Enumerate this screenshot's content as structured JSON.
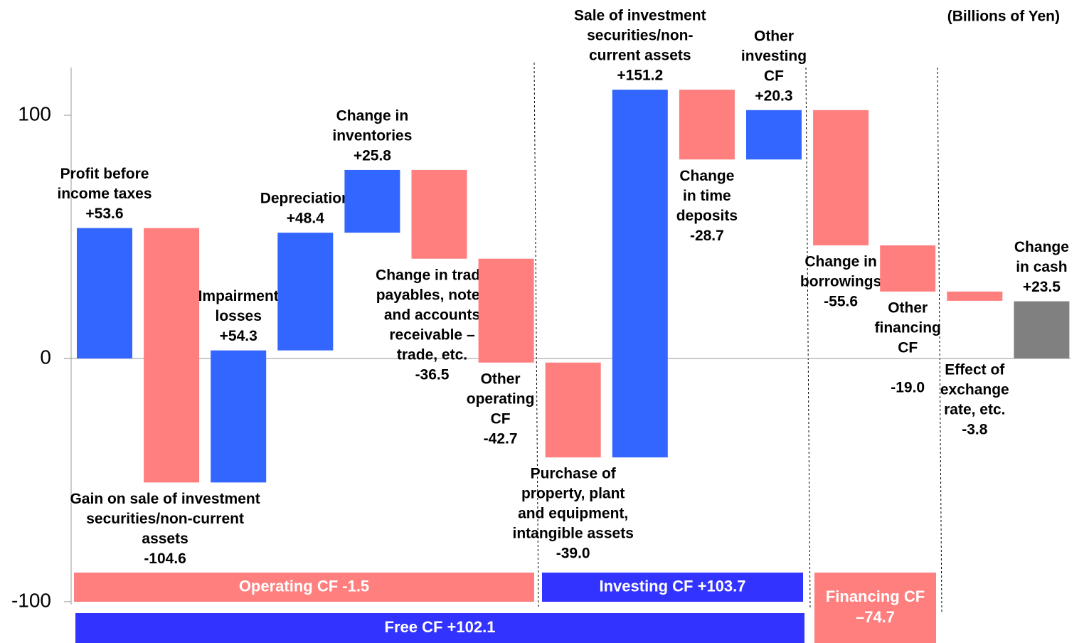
{
  "chart_data": {
    "type": "waterfall",
    "unit_label": "(Billions of Yen)",
    "categories": [
      [
        "Profit before",
        "income taxes"
      ],
      [
        "Gain on sale of investment",
        "securities/non-current",
        "assets"
      ],
      [
        "Impairment",
        "losses"
      ],
      [
        "Depreciation"
      ],
      [
        "Change in",
        "inventories"
      ],
      [
        "Change in trade",
        "payables, notes",
        "and accounts",
        "receivable –",
        "trade, etc."
      ],
      [
        "Other",
        "operating",
        "CF"
      ],
      [
        "Purchase of",
        "property, plant",
        "and equipment,",
        "intangible assets"
      ],
      [
        "Sale of investment",
        "securities/non-",
        "current assets"
      ],
      [
        "Change",
        "in time",
        "deposits"
      ],
      [
        "Other",
        "investing",
        "CF"
      ],
      [
        "Change in",
        "borrowings"
      ],
      [
        "Other",
        "financing",
        "CF"
      ],
      [
        "Effect of",
        "exchange",
        "rate, etc."
      ],
      [
        "Change",
        "in cash"
      ]
    ],
    "values": [
      53.6,
      -104.6,
      54.3,
      48.4,
      25.8,
      -36.5,
      -42.7,
      -39.0,
      151.2,
      -28.7,
      20.3,
      -55.6,
      -19.0,
      -3.8,
      23.5
    ],
    "value_labels": [
      "+53.6",
      "-104.6",
      "+54.3",
      "+48.4",
      "+25.8",
      "-36.5",
      "-42.7",
      "-39.0",
      "+151.2",
      "-28.7",
      "+20.3",
      "-55.6",
      "-19.0",
      "-3.8",
      "+23.5"
    ],
    "is_total": [
      false,
      false,
      false,
      false,
      false,
      false,
      false,
      false,
      false,
      false,
      false,
      false,
      false,
      false,
      true
    ],
    "colors": {
      "increase": "#3366ff",
      "decrease": "#ff7f7f",
      "total": "#808080"
    },
    "groups": [
      {
        "label": [
          "Operating CF -1.5"
        ],
        "color": "#ff7f7f"
      },
      {
        "label": [
          "Investing CF +103.7"
        ],
        "color": "#3333ff"
      },
      {
        "label": [
          "Financing CF",
          "–74.7"
        ],
        "color": "#ff7f7f"
      },
      {
        "label": [
          "Free CF +102.1"
        ],
        "color": "#3333ff"
      }
    ],
    "ylim": [
      -117,
      120
    ],
    "yticks": [
      100,
      0,
      -100
    ]
  }
}
